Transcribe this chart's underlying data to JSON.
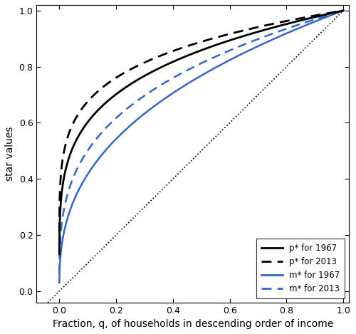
{
  "title": "",
  "xlabel": "Fraction, q, of households in descending order of income",
  "ylabel": "star values",
  "xlim": [
    -0.08,
    1.02
  ],
  "ylim": [
    -0.04,
    1.02
  ],
  "xticks": [
    0.0,
    0.2,
    0.4,
    0.6,
    0.8,
    1.0
  ],
  "yticks": [
    0.0,
    0.2,
    0.4,
    0.6,
    0.8,
    1.0
  ],
  "diagonal_color": "#000000",
  "p1967_color": "#000000",
  "p2013_color": "#000000",
  "m1967_color": "#3366CC",
  "m2013_color": "#3366CC",
  "legend_labels": [
    "p* for 1967",
    "p* for 2013",
    "m* for 1967",
    "m* for 2013"
  ],
  "background_color": "#ffffff",
  "curve_params": {
    "p1967": {
      "alpha": 0.22
    },
    "p2013": {
      "alpha": 0.17
    },
    "m1967": {
      "alpha": 0.38
    },
    "m2013": {
      "alpha": 0.3
    }
  }
}
